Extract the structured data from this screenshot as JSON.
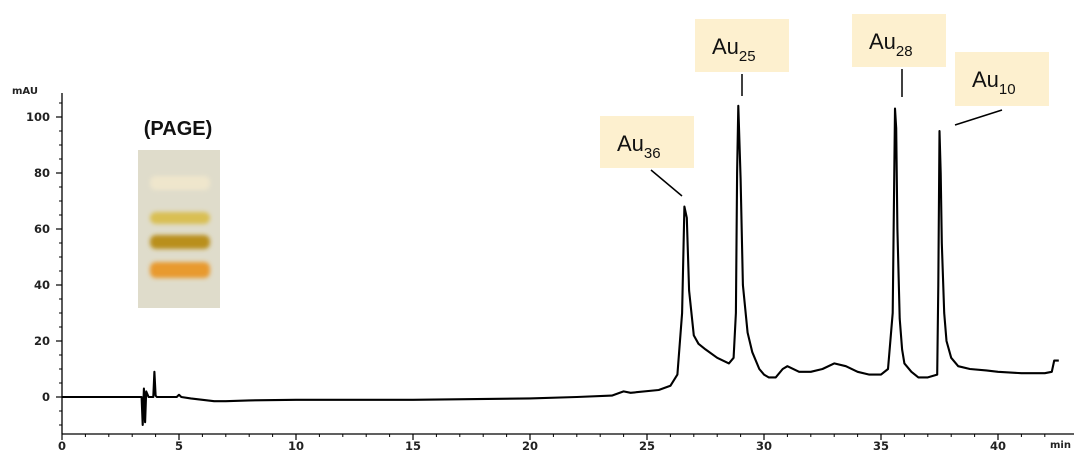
{
  "chart_data": {
    "type": "line",
    "title": "",
    "xlabel": "",
    "ylabel": "",
    "x_unit": "min",
    "y_unit": "mAU",
    "xlim": [
      0,
      42.6
    ],
    "ylim": [
      -12,
      106
    ],
    "x_ticks": [
      0,
      5,
      10,
      15,
      20,
      25,
      30,
      35,
      40
    ],
    "y_ticks": [
      0,
      20,
      40,
      60,
      80,
      100
    ],
    "line_color": "#000000",
    "series": [
      {
        "x": [
          0,
          3.3,
          3.4,
          3.45,
          3.5,
          3.55,
          3.6,
          3.7,
          3.8,
          3.9,
          3.95,
          4.0,
          4.05,
          4.1,
          4.2,
          4.5,
          4.9,
          5.0,
          5.1,
          5.5,
          6.0,
          6.5,
          7.0,
          8.0,
          10.0,
          15.0,
          20.0,
          22.0,
          23.5,
          24.0,
          24.3,
          25.5,
          26.0,
          26.3,
          26.5,
          26.6,
          26.7,
          26.8,
          27.0,
          27.2,
          27.5,
          28.0,
          28.5,
          28.7,
          28.8,
          28.85,
          28.9,
          29.0,
          29.1,
          29.3,
          29.5,
          29.8,
          30.0,
          30.2,
          30.5,
          30.8,
          31.0,
          31.5,
          32.0,
          32.5,
          33.0,
          33.5,
          34.0,
          34.5,
          35.0,
          35.3,
          35.5,
          35.6,
          35.65,
          35.7,
          35.8,
          35.9,
          36.0,
          36.3,
          36.6,
          37.0,
          37.4,
          37.45,
          37.5,
          37.55,
          37.6,
          37.7,
          37.8,
          38.0,
          38.3,
          38.8,
          39.5,
          40.0,
          41.0,
          42.0,
          42.3,
          42.4,
          42.6
        ],
        "y": [
          0,
          0,
          0,
          -10,
          3,
          -9,
          2,
          0,
          0,
          0,
          9,
          0.5,
          0,
          0,
          0,
          0,
          0,
          0.8,
          0,
          -0.5,
          -1,
          -1.5,
          -1.5,
          -1.2,
          -1,
          -1,
          -0.5,
          0,
          0.5,
          2,
          1.5,
          2.5,
          4,
          8,
          30,
          68,
          64,
          38,
          22,
          19,
          17,
          14,
          12,
          14,
          30,
          80,
          104,
          78,
          40,
          23,
          16,
          10,
          8,
          7,
          7,
          10,
          11,
          9,
          9,
          10,
          12,
          11,
          9,
          8,
          8,
          10,
          30,
          103,
          96,
          60,
          28,
          17,
          12,
          9,
          7,
          7,
          8,
          40,
          95,
          80,
          55,
          30,
          20,
          14,
          11,
          10,
          9.5,
          9,
          8.5,
          8.5,
          9,
          13,
          13
        ]
      }
    ],
    "peaks": [
      {
        "label": "Au",
        "sub": "36",
        "x": 26.6,
        "y": 68
      },
      {
        "label": "Au",
        "sub": "25",
        "x": 28.9,
        "y": 104
      },
      {
        "label": "Au",
        "sub": "28",
        "x": 35.65,
        "y": 103
      },
      {
        "label": "Au",
        "sub": "10",
        "x": 37.5,
        "y": 95
      }
    ],
    "label_bg_color": "#fdf0cf",
    "annotations": [
      {
        "text": "(PAGE)"
      }
    ]
  },
  "gel": {
    "background": "#dfdccb",
    "bands": [
      {
        "color": "#efe6cc"
      },
      {
        "color": "#d9bf52"
      },
      {
        "color": "#b98f1e"
      },
      {
        "color": "#e89a2e"
      }
    ]
  }
}
